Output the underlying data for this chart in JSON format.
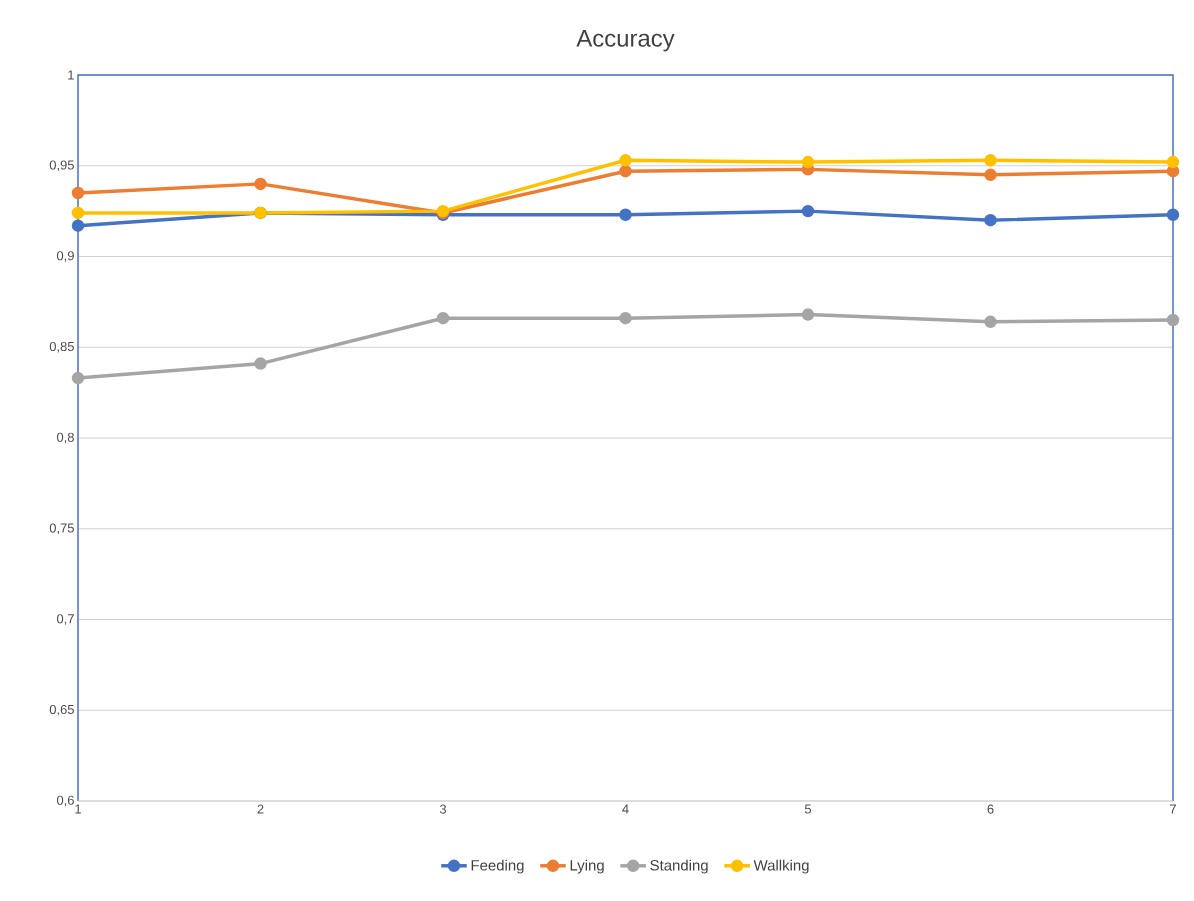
{
  "chart_data": {
    "type": "line",
    "title": "Accuracy",
    "x": [
      1,
      2,
      3,
      4,
      5,
      6,
      7
    ],
    "series": [
      {
        "name": "Feeding",
        "color": "#4472c4",
        "values": [
          0.917,
          0.924,
          0.923,
          0.923,
          0.925,
          0.92,
          0.923
        ]
      },
      {
        "name": "Lying",
        "color": "#ed7d31",
        "values": [
          0.935,
          0.94,
          0.924,
          0.947,
          0.948,
          0.945,
          0.947
        ]
      },
      {
        "name": "Standing",
        "color": "#a5a5a5",
        "values": [
          0.833,
          0.841,
          0.866,
          0.866,
          0.868,
          0.864,
          0.865
        ]
      },
      {
        "name": "Wallking",
        "color": "#ffc000",
        "values": [
          0.924,
          0.924,
          0.925,
          0.953,
          0.952,
          0.953,
          0.952
        ]
      }
    ],
    "xlim": [
      1,
      7
    ],
    "xticks": [
      1,
      2,
      3,
      4,
      5,
      6,
      7
    ],
    "ylim": [
      0.6,
      1
    ],
    "yticks": [
      {
        "value": 0.6,
        "label": "0,6"
      },
      {
        "value": 0.65,
        "label": "0,65"
      },
      {
        "value": 0.7,
        "label": "0,7"
      },
      {
        "value": 0.75,
        "label": "0,75"
      },
      {
        "value": 0.8,
        "label": "0,8"
      },
      {
        "value": 0.85,
        "label": "0,85"
      },
      {
        "value": 0.9,
        "label": "0,9"
      },
      {
        "value": 0.95,
        "label": "0,95"
      },
      {
        "value": 1,
        "label": "1"
      }
    ],
    "grid": "y",
    "legend": "bottom",
    "marker": "circle",
    "line_style": "solid"
  }
}
